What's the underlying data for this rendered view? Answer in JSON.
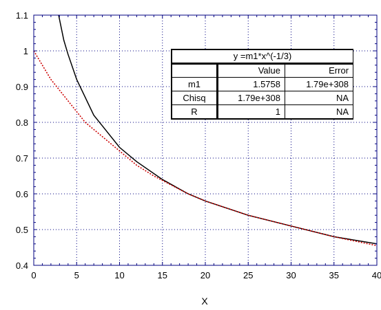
{
  "chart_data": {
    "type": "line",
    "xlabel": "X",
    "ylabel": "",
    "xlim": [
      0,
      40
    ],
    "ylim": [
      0.4,
      1.1
    ],
    "xticks": [
      0,
      5,
      10,
      15,
      20,
      25,
      30,
      35,
      40
    ],
    "yticks": [
      0.4,
      0.5,
      0.6,
      0.7,
      0.8,
      0.9,
      1,
      1.1
    ],
    "grid": true,
    "series": [
      {
        "name": "",
        "style": "solid",
        "color": "#000000",
        "x": [
          2.9,
          3.5,
          4,
          5,
          6,
          7,
          8,
          10,
          12,
          15,
          18,
          20,
          25,
          30,
          35,
          40
        ],
        "y": [
          1.1,
          1.03,
          0.99,
          0.92,
          0.87,
          0.82,
          0.79,
          0.73,
          0.69,
          0.64,
          0.6,
          0.58,
          0.54,
          0.51,
          0.48,
          0.46
        ]
      },
      {
        "name": "",
        "style": "dotted",
        "color": "#cc0000",
        "x": [
          0,
          2,
          4,
          6,
          8,
          10,
          12,
          14,
          16,
          18,
          20,
          25,
          30,
          35,
          40
        ],
        "y": [
          1.0,
          0.92,
          0.86,
          0.8,
          0.76,
          0.72,
          0.68,
          0.65,
          0.625,
          0.6,
          0.58,
          0.54,
          0.51,
          0.48,
          0.455
        ]
      }
    ],
    "fit_table": {
      "title": "y =m1*x^(-1/3)",
      "columns": [
        "",
        "Value",
        "Error"
      ],
      "rows": [
        [
          "m1",
          "1.5758",
          "1.79e+308"
        ],
        [
          "Chisq",
          "1.79e+308",
          "NA"
        ],
        [
          "R",
          "1",
          "NA"
        ]
      ]
    }
  },
  "colors": {
    "frame": "#000080",
    "grid": "#000080",
    "fit_curve": "#000000",
    "data_curve": "#cc0000"
  }
}
